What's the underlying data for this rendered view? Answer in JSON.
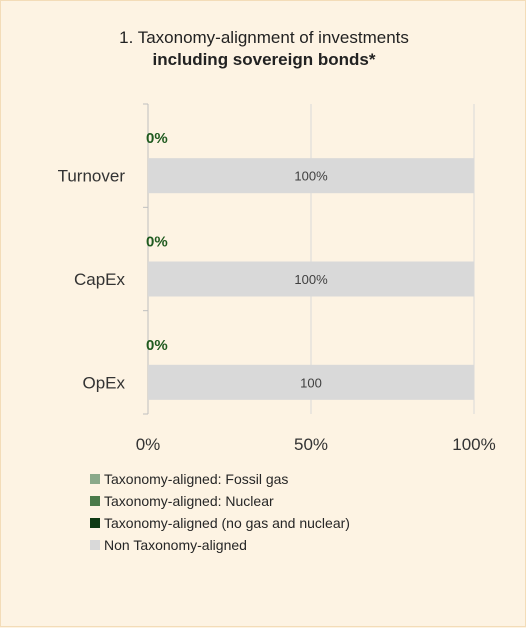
{
  "colors": {
    "fossil_gas": "#8aa98a",
    "nuclear": "#4a7a4a",
    "aligned": "#0f3a14",
    "non_aligned": "#d9d9d9",
    "aligned_label": "#1f5a1f",
    "background": "#fdf3e3"
  },
  "chart_data": {
    "type": "bar",
    "orientation": "horizontal",
    "stacked": true,
    "title": "1. Taxonomy-alignment of investments",
    "subtitle": "including sovereign bonds*",
    "categories": [
      "Turnover",
      "CapEx",
      "OpEx"
    ],
    "series": [
      {
        "name": "Taxonomy-aligned: Fossil gas",
        "values": [
          0,
          0,
          0
        ]
      },
      {
        "name": "Taxonomy-aligned: Nuclear",
        "values": [
          0,
          0,
          0
        ]
      },
      {
        "name": "Taxonomy-aligned (no gas and nuclear)",
        "values": [
          0,
          0,
          0
        ]
      },
      {
        "name": "Non Taxonomy-aligned",
        "values": [
          100,
          100,
          100
        ]
      }
    ],
    "aligned_labels": [
      "0%",
      "0%",
      "0%"
    ],
    "bar_labels": [
      "100%",
      "100%",
      "100"
    ],
    "xlim": [
      0,
      100
    ],
    "x_ticks": [
      "0%",
      "50%",
      "100%"
    ],
    "grid": true,
    "legend_position": "bottom"
  }
}
